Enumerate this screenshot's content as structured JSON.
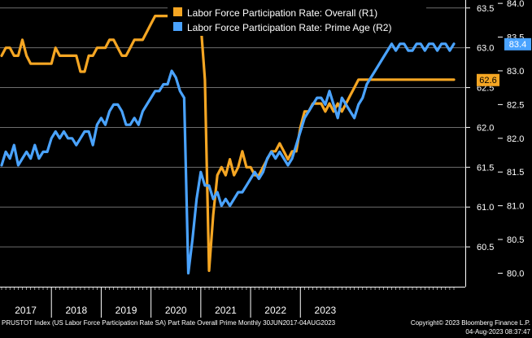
{
  "chart_data": {
    "type": "line",
    "legend": {
      "placement": "top"
    },
    "grid": true,
    "x_axis": {
      "start": "2017-01",
      "end": "2023-07",
      "year_labels": [
        "2017",
        "2018",
        "2019",
        "2020",
        "2021",
        "2022",
        "2023"
      ]
    },
    "y_axis_r1": {
      "ylim": [
        60.0,
        63.6
      ],
      "ticks": [
        "63.5",
        "63.0",
        "62.5",
        "62.0",
        "61.5",
        "61.0",
        "60.5"
      ],
      "tick_values": [
        63.5,
        63.0,
        62.5,
        62.0,
        61.5,
        61.0,
        60.5
      ]
    },
    "y_axis_r2": {
      "ylim": [
        79.8,
        84.05
      ],
      "ticks": [
        "84.0",
        "83.5",
        "83.0",
        "82.5",
        "82.0",
        "81.5",
        "81.0",
        "80.5",
        "80.0"
      ],
      "tick_values": [
        84.0,
        83.5,
        83.0,
        82.5,
        82.0,
        81.5,
        81.0,
        80.5,
        80.0
      ]
    },
    "series": [
      {
        "name": "Labor Force Participation Rate: Overall (R1)",
        "axis": "r1",
        "color": "#f5a623",
        "last_value_label": "62.6",
        "values": [
          62.9,
          63.0,
          63.0,
          62.9,
          62.9,
          63.1,
          62.9,
          62.8,
          62.8,
          62.8,
          62.8,
          62.8,
          62.8,
          63.0,
          62.9,
          62.9,
          62.9,
          62.9,
          62.9,
          62.7,
          62.7,
          62.9,
          62.9,
          63.0,
          63.0,
          63.0,
          63.1,
          63.1,
          63.0,
          62.9,
          62.9,
          63.0,
          63.1,
          63.1,
          63.1,
          63.2,
          63.3,
          63.4,
          63.4,
          63.4,
          63.4,
          63.4,
          63.4,
          63.4,
          63.4,
          63.4,
          63.4,
          63.4,
          63.3,
          62.6,
          60.2,
          60.9,
          61.4,
          61.5,
          61.4,
          61.6,
          61.4,
          61.5,
          61.7,
          61.5,
          61.5,
          61.4,
          61.4,
          61.5,
          61.6,
          61.7,
          61.7,
          61.8,
          61.7,
          61.6,
          61.7,
          61.7,
          62.0,
          62.2,
          62.2,
          62.3,
          62.3,
          62.3,
          62.2,
          62.3,
          62.2,
          62.3,
          62.2,
          62.3,
          62.4,
          62.5,
          62.6,
          62.6,
          62.6,
          62.6,
          62.6,
          62.6,
          62.6,
          62.6,
          62.6,
          62.6,
          62.6,
          62.6,
          62.6,
          62.6,
          62.6,
          62.6,
          62.6,
          62.6,
          62.6,
          62.6,
          62.6,
          62.6,
          62.6,
          62.6
        ]
      },
      {
        "name": "Labor Force Participation Rate: Prime Age (R2)",
        "axis": "r2",
        "color": "#4aa3ff",
        "last_value_label": "83.4",
        "values": [
          81.6,
          81.8,
          81.7,
          81.9,
          81.6,
          81.7,
          81.8,
          81.7,
          81.9,
          81.7,
          81.8,
          81.8,
          82.0,
          82.1,
          82.0,
          82.1,
          82.0,
          82.0,
          81.9,
          82.0,
          82.1,
          82.1,
          81.9,
          82.2,
          82.3,
          82.2,
          82.4,
          82.5,
          82.5,
          82.4,
          82.2,
          82.2,
          82.3,
          82.2,
          82.4,
          82.5,
          82.6,
          82.7,
          82.7,
          82.8,
          82.8,
          83.0,
          82.9,
          82.7,
          82.6,
          80.0,
          80.5,
          81.1,
          81.5,
          81.3,
          81.3,
          81.1,
          81.2,
          81.0,
          81.1,
          81.0,
          81.1,
          81.2,
          81.2,
          81.3,
          81.4,
          81.5,
          81.4,
          81.5,
          81.7,
          81.8,
          81.7,
          81.8,
          81.7,
          81.6,
          81.7,
          81.9,
          82.1,
          82.3,
          82.4,
          82.5,
          82.6,
          82.6,
          82.5,
          82.7,
          82.5,
          82.3,
          82.6,
          82.5,
          82.4,
          82.3,
          82.5,
          82.6,
          82.8,
          82.9,
          83.0,
          83.1,
          83.2,
          83.3,
          83.4,
          83.3,
          83.4,
          83.4,
          83.3,
          83.3,
          83.4,
          83.4,
          83.3,
          83.4,
          83.4,
          83.3,
          83.4,
          83.4,
          83.3,
          83.4
        ]
      }
    ]
  },
  "footer": {
    "left": "PRUSTOT Index (US Labor Force Participation Rate SA) Part Rate Overall Prime  Monthly 30JUN2017-04AUG2023",
    "right_line1": "Copyright© 2023 Bloomberg Finance L.P.",
    "right_line2": "04-Aug-2023 08:37:47"
  }
}
